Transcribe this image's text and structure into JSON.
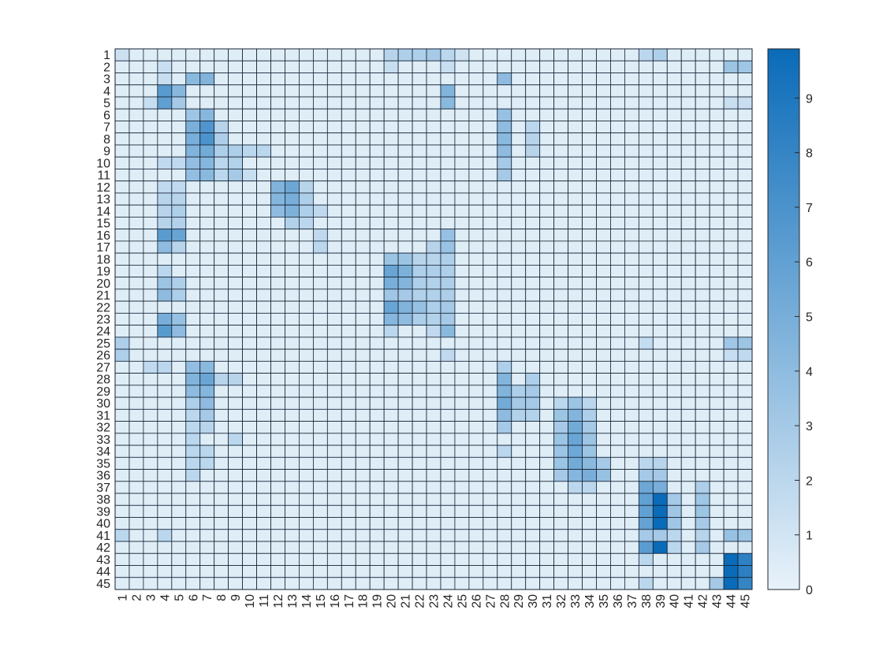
{
  "chart_data": {
    "type": "heatmap",
    "title": "",
    "xlabel": "",
    "ylabel": "",
    "x_labels": [
      "1",
      "2",
      "3",
      "4",
      "5",
      "6",
      "7",
      "8",
      "9",
      "10",
      "11",
      "12",
      "13",
      "14",
      "15",
      "16",
      "17",
      "18",
      "19",
      "20",
      "21",
      "22",
      "23",
      "24",
      "25",
      "26",
      "27",
      "28",
      "29",
      "30",
      "31",
      "32",
      "33",
      "34",
      "35",
      "36",
      "37",
      "38",
      "39",
      "40",
      "41",
      "42",
      "43",
      "44",
      "45"
    ],
    "y_labels": [
      "1",
      "2",
      "3",
      "4",
      "5",
      "6",
      "7",
      "8",
      "9",
      "10",
      "11",
      "12",
      "13",
      "14",
      "15",
      "16",
      "17",
      "18",
      "19",
      "20",
      "21",
      "22",
      "23",
      "24",
      "25",
      "26",
      "27",
      "28",
      "29",
      "30",
      "31",
      "32",
      "33",
      "34",
      "35",
      "36",
      "37",
      "38",
      "39",
      "40",
      "41",
      "42",
      "43",
      "44",
      "45"
    ],
    "base_value": 0.4,
    "grid": true,
    "colorbar": {
      "placement": "right",
      "range": [
        0,
        9.9
      ],
      "ticks": [
        0,
        1,
        2,
        3,
        4,
        5,
        6,
        7,
        8,
        9
      ],
      "color_low": "#e8f2fa",
      "color_high": "#0a6bb8",
      "cell_border": "#142233"
    },
    "cells": [
      [
        1,
        1,
        1.3
      ],
      [
        1,
        20,
        2.2
      ],
      [
        1,
        21,
        2.6
      ],
      [
        1,
        22,
        2.6
      ],
      [
        1,
        23,
        3.0
      ],
      [
        1,
        24,
        2.0
      ],
      [
        1,
        25,
        1.1
      ],
      [
        1,
        38,
        2.0
      ],
      [
        1,
        39,
        2.6
      ],
      [
        2,
        4,
        1.4
      ],
      [
        2,
        20,
        1.5
      ],
      [
        2,
        24,
        1.4
      ],
      [
        2,
        44,
        3.4
      ],
      [
        2,
        45,
        3.2
      ],
      [
        3,
        4,
        1.5
      ],
      [
        3,
        6,
        4.2
      ],
      [
        3,
        7,
        4.6
      ],
      [
        3,
        28,
        4.0
      ],
      [
        4,
        4,
        6.4
      ],
      [
        4,
        5,
        4.3
      ],
      [
        4,
        24,
        4.6
      ],
      [
        5,
        3,
        1.5
      ],
      [
        5,
        4,
        6.1
      ],
      [
        5,
        5,
        3.0
      ],
      [
        5,
        24,
        4.2
      ],
      [
        5,
        44,
        1.4
      ],
      [
        5,
        45,
        1.4
      ],
      [
        6,
        6,
        3.3
      ],
      [
        6,
        7,
        4.3
      ],
      [
        6,
        28,
        3.6
      ],
      [
        7,
        6,
        4.9
      ],
      [
        7,
        7,
        6.8
      ],
      [
        7,
        8,
        2.2
      ],
      [
        7,
        28,
        4.0
      ],
      [
        7,
        30,
        2.0
      ],
      [
        8,
        6,
        5.0
      ],
      [
        8,
        7,
        7.0
      ],
      [
        8,
        8,
        2.6
      ],
      [
        8,
        28,
        4.2
      ],
      [
        8,
        30,
        2.2
      ],
      [
        9,
        6,
        4.6
      ],
      [
        9,
        7,
        5.2
      ],
      [
        9,
        8,
        2.6
      ],
      [
        9,
        9,
        2.6
      ],
      [
        9,
        10,
        2.0
      ],
      [
        9,
        11,
        2.0
      ],
      [
        9,
        28,
        4.0
      ],
      [
        9,
        30,
        2.2
      ],
      [
        10,
        4,
        1.8
      ],
      [
        10,
        5,
        1.8
      ],
      [
        10,
        6,
        3.8
      ],
      [
        10,
        7,
        4.4
      ],
      [
        10,
        8,
        2.0
      ],
      [
        10,
        9,
        2.4
      ],
      [
        10,
        28,
        3.0
      ],
      [
        11,
        6,
        3.8
      ],
      [
        11,
        7,
        4.2
      ],
      [
        11,
        8,
        2.0
      ],
      [
        11,
        9,
        3.0
      ],
      [
        11,
        10,
        1.5
      ],
      [
        11,
        28,
        3.0
      ],
      [
        12,
        4,
        1.8
      ],
      [
        12,
        5,
        1.8
      ],
      [
        12,
        12,
        4.6
      ],
      [
        12,
        13,
        5.5
      ],
      [
        12,
        14,
        2.2
      ],
      [
        13,
        4,
        2.2
      ],
      [
        13,
        5,
        2.2
      ],
      [
        13,
        12,
        4.4
      ],
      [
        13,
        13,
        5.0
      ],
      [
        13,
        14,
        2.6
      ],
      [
        14,
        4,
        2.2
      ],
      [
        14,
        5,
        2.6
      ],
      [
        14,
        12,
        4.0
      ],
      [
        14,
        13,
        4.8
      ],
      [
        14,
        14,
        2.6
      ],
      [
        14,
        15,
        1.8
      ],
      [
        15,
        4,
        2.2
      ],
      [
        15,
        5,
        2.4
      ],
      [
        15,
        13,
        2.4
      ],
      [
        15,
        14,
        2.0
      ],
      [
        16,
        4,
        6.3
      ],
      [
        16,
        5,
        5.7
      ],
      [
        16,
        15,
        1.8
      ],
      [
        16,
        24,
        3.6
      ],
      [
        17,
        4,
        4.0
      ],
      [
        17,
        5,
        2.2
      ],
      [
        17,
        15,
        2.0
      ],
      [
        17,
        23,
        2.2
      ],
      [
        17,
        24,
        3.5
      ],
      [
        18,
        20,
        3.4
      ],
      [
        18,
        21,
        3.4
      ],
      [
        18,
        22,
        2.2
      ],
      [
        18,
        23,
        2.2
      ],
      [
        18,
        24,
        2.6
      ],
      [
        19,
        4,
        2.0
      ],
      [
        19,
        20,
        5.7
      ],
      [
        19,
        21,
        4.8
      ],
      [
        19,
        22,
        2.6
      ],
      [
        19,
        23,
        2.6
      ],
      [
        19,
        24,
        2.6
      ],
      [
        20,
        4,
        3.4
      ],
      [
        20,
        5,
        2.6
      ],
      [
        20,
        20,
        5.0
      ],
      [
        20,
        21,
        4.5
      ],
      [
        20,
        22,
        2.6
      ],
      [
        20,
        23,
        2.4
      ],
      [
        20,
        24,
        2.6
      ],
      [
        21,
        4,
        4.0
      ],
      [
        21,
        5,
        2.6
      ],
      [
        21,
        20,
        3.2
      ],
      [
        21,
        21,
        3.0
      ],
      [
        21,
        22,
        2.4
      ],
      [
        21,
        23,
        2.4
      ],
      [
        21,
        24,
        2.6
      ],
      [
        22,
        20,
        5.7
      ],
      [
        22,
        21,
        4.6
      ],
      [
        22,
        22,
        3.6
      ],
      [
        22,
        23,
        2.6
      ],
      [
        22,
        24,
        3.0
      ],
      [
        23,
        4,
        5.0
      ],
      [
        23,
        5,
        3.6
      ],
      [
        23,
        20,
        4.4
      ],
      [
        23,
        21,
        4.0
      ],
      [
        23,
        22,
        2.6
      ],
      [
        23,
        23,
        2.4
      ],
      [
        23,
        24,
        3.0
      ],
      [
        24,
        4,
        6.4
      ],
      [
        24,
        5,
        4.0
      ],
      [
        24,
        20,
        2.0
      ],
      [
        24,
        23,
        1.8
      ],
      [
        24,
        24,
        4.2
      ],
      [
        25,
        1,
        2.6
      ],
      [
        25,
        38,
        1.6
      ],
      [
        25,
        44,
        3.2
      ],
      [
        25,
        45,
        3.4
      ],
      [
        26,
        1,
        2.6
      ],
      [
        26,
        24,
        1.8
      ],
      [
        26,
        44,
        1.5
      ],
      [
        26,
        45,
        1.8
      ],
      [
        27,
        3,
        1.8
      ],
      [
        27,
        4,
        2.0
      ],
      [
        27,
        6,
        3.8
      ],
      [
        27,
        7,
        4.2
      ],
      [
        27,
        28,
        2.6
      ],
      [
        28,
        6,
        4.6
      ],
      [
        28,
        7,
        5.6
      ],
      [
        28,
        8,
        2.2
      ],
      [
        28,
        9,
        2.2
      ],
      [
        28,
        28,
        4.5
      ],
      [
        28,
        30,
        2.6
      ],
      [
        29,
        6,
        4.0
      ],
      [
        29,
        7,
        4.4
      ],
      [
        29,
        28,
        4.6
      ],
      [
        29,
        29,
        2.6
      ],
      [
        29,
        30,
        3.0
      ],
      [
        30,
        6,
        2.6
      ],
      [
        30,
        7,
        4.0
      ],
      [
        30,
        28,
        5.2
      ],
      [
        30,
        29,
        3.0
      ],
      [
        30,
        30,
        3.0
      ],
      [
        30,
        32,
        2.0
      ],
      [
        30,
        33,
        3.4
      ],
      [
        30,
        34,
        2.0
      ],
      [
        31,
        6,
        2.0
      ],
      [
        31,
        7,
        3.0
      ],
      [
        31,
        28,
        4.0
      ],
      [
        31,
        29,
        2.4
      ],
      [
        31,
        30,
        2.4
      ],
      [
        31,
        32,
        3.4
      ],
      [
        31,
        33,
        4.5
      ],
      [
        31,
        34,
        2.6
      ],
      [
        32,
        6,
        2.0
      ],
      [
        32,
        7,
        2.2
      ],
      [
        32,
        28,
        3.0
      ],
      [
        32,
        32,
        3.0
      ],
      [
        32,
        33,
        5.2
      ],
      [
        32,
        34,
        3.0
      ],
      [
        33,
        6,
        2.0
      ],
      [
        33,
        9,
        2.0
      ],
      [
        33,
        32,
        3.4
      ],
      [
        33,
        33,
        5.6
      ],
      [
        33,
        34,
        3.4
      ],
      [
        34,
        6,
        2.0
      ],
      [
        34,
        7,
        2.0
      ],
      [
        34,
        28,
        2.0
      ],
      [
        34,
        32,
        3.4
      ],
      [
        34,
        33,
        5.4
      ],
      [
        34,
        34,
        3.4
      ],
      [
        35,
        6,
        2.0
      ],
      [
        35,
        7,
        2.0
      ],
      [
        35,
        32,
        3.4
      ],
      [
        35,
        33,
        5.2
      ],
      [
        35,
        34,
        4.2
      ],
      [
        35,
        35,
        3.0
      ],
      [
        35,
        38,
        2.0
      ],
      [
        35,
        39,
        2.2
      ],
      [
        36,
        6,
        2.0
      ],
      [
        36,
        32,
        3.0
      ],
      [
        36,
        33,
        4.4
      ],
      [
        36,
        34,
        5.0
      ],
      [
        36,
        35,
        3.6
      ],
      [
        36,
        38,
        3.0
      ],
      [
        36,
        39,
        3.0
      ],
      [
        37,
        33,
        2.0
      ],
      [
        37,
        34,
        2.0
      ],
      [
        37,
        38,
        5.5
      ],
      [
        37,
        39,
        5.0
      ],
      [
        37,
        42,
        2.6
      ],
      [
        38,
        38,
        6.0
      ],
      [
        38,
        39,
        9.9
      ],
      [
        38,
        40,
        3.0
      ],
      [
        38,
        42,
        3.2
      ],
      [
        39,
        38,
        6.0
      ],
      [
        39,
        39,
        9.9
      ],
      [
        39,
        40,
        3.2
      ],
      [
        39,
        42,
        3.4
      ],
      [
        40,
        38,
        5.9
      ],
      [
        40,
        39,
        9.9
      ],
      [
        40,
        40,
        3.2
      ],
      [
        40,
        42,
        3.0
      ],
      [
        41,
        1,
        2.0
      ],
      [
        41,
        4,
        2.0
      ],
      [
        41,
        38,
        3.0
      ],
      [
        41,
        39,
        3.0
      ],
      [
        41,
        40,
        2.0
      ],
      [
        41,
        42,
        2.2
      ],
      [
        41,
        44,
        3.6
      ],
      [
        41,
        45,
        3.4
      ],
      [
        42,
        38,
        6.3
      ],
      [
        42,
        39,
        9.9
      ],
      [
        42,
        40,
        2.0
      ],
      [
        42,
        42,
        3.0
      ],
      [
        43,
        38,
        2.0
      ],
      [
        43,
        44,
        9.9
      ],
      [
        43,
        45,
        8.3
      ],
      [
        44,
        44,
        9.9
      ],
      [
        44,
        45,
        8.4
      ],
      [
        45,
        38,
        2.0
      ],
      [
        45,
        43,
        3.0
      ],
      [
        45,
        44,
        9.9
      ],
      [
        45,
        45,
        8.0
      ]
    ]
  }
}
